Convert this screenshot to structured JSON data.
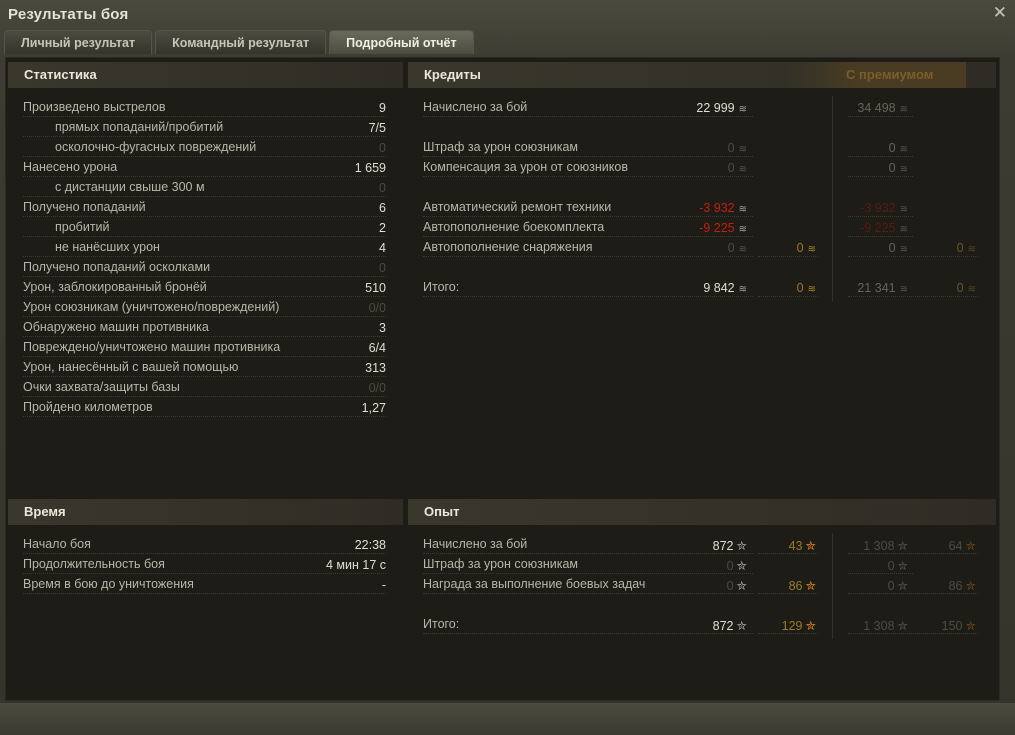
{
  "window": {
    "title": "Результаты боя",
    "close_icon": "close-icon"
  },
  "tabs": [
    {
      "label": "Личный результат"
    },
    {
      "label": "Командный результат"
    },
    {
      "label": "Подробный отчёт",
      "active": true
    }
  ],
  "stats": {
    "title": "Статистика",
    "rows": [
      {
        "label": "Произведено выстрелов",
        "value": "9"
      },
      {
        "label": "прямых попаданий/пробитий",
        "value": "7/5",
        "indent": true
      },
      {
        "label": "осколочно-фугасных повреждений",
        "value": "0",
        "indent": true,
        "dim": true
      },
      {
        "label": "Нанесено урона",
        "value": "1 659"
      },
      {
        "label": "с дистанции свыше 300 м",
        "value": "0",
        "indent": true,
        "dim": true
      },
      {
        "label": "Получено попаданий",
        "value": "6"
      },
      {
        "label": "пробитий",
        "value": "2",
        "indent": true
      },
      {
        "label": "не нанёсших урон",
        "value": "4",
        "indent": true
      },
      {
        "label": "Получено попаданий осколками",
        "value": "0",
        "dim": true
      },
      {
        "label": "Урон, заблокированный бронёй",
        "value": "510"
      },
      {
        "label": "Урон союзникам (уничтожено/повреждений)",
        "value": "0/0",
        "dim": true
      },
      {
        "label": "Обнаружено машин противника",
        "value": "3"
      },
      {
        "label": "Повреждено/уничтожено машин противника",
        "value": "6/4"
      },
      {
        "label": "Урон, нанесённый с вашей помощью",
        "value": "313"
      },
      {
        "label": "Очки захвата/защиты базы",
        "value": "0/0",
        "dim": true
      },
      {
        "label": "Пройдено километров",
        "value": "1,27"
      }
    ]
  },
  "time": {
    "title": "Время",
    "rows": [
      {
        "label": "Начало боя",
        "value": "22:38"
      },
      {
        "label": "Продолжительность боя",
        "value": "4 мин 17 с"
      },
      {
        "label": "Время в бою до уничтожения",
        "value": "-"
      }
    ]
  },
  "credits": {
    "title": "Кредиты",
    "premium_label": "С премиумом",
    "rows": [
      {
        "label": "Начислено за бой",
        "c": "22 999",
        "pc": "34 498"
      },
      null,
      {
        "label": "Штраф за урон союзникам",
        "c": "0",
        "pc": "0",
        "cdim": true
      },
      {
        "label": "Компенсация за урон от союзников",
        "c": "0",
        "pc": "0",
        "cdim": true
      },
      null,
      {
        "label": "Автоматический ремонт техники",
        "c": "-3 932",
        "pc": "-3 932",
        "red": true
      },
      {
        "label": "Автопополнение боекомплекта",
        "c": "-9 225",
        "pc": "-9 225",
        "red": true
      },
      {
        "label": "Автопополнение снаряжения",
        "c": "0",
        "g": "0",
        "pc": "0",
        "pg": "0",
        "cdim": true
      },
      null,
      {
        "label": "Итого:",
        "c": "9 842",
        "g": "0",
        "pc": "21 341",
        "pg": "0"
      }
    ]
  },
  "experience": {
    "title": "Опыт",
    "rows": [
      {
        "label": "Начислено за бой",
        "c": "872",
        "g": "43",
        "pc": "1 308",
        "pg": "64"
      },
      {
        "label": "Штраф за урон союзникам",
        "c": "0",
        "pc": "0",
        "cdim": true
      },
      {
        "label": "Награда за выполнение боевых задач",
        "c": "0",
        "g": "86",
        "pc": "0",
        "pg": "86",
        "cdim": true
      },
      null,
      {
        "label": "Итого:",
        "c": "872",
        "g": "129",
        "pc": "1 308",
        "pg": "150"
      }
    ]
  },
  "colors": {
    "negative": "#c51d12",
    "gold": "#9a7a2c",
    "free_xp_star": "#f08a1e"
  },
  "icons": {
    "credits": "credit-coin-icon",
    "gold": "gold-coin-icon",
    "xp": "xp-star-icon",
    "free_xp": "free-xp-star-icon"
  }
}
